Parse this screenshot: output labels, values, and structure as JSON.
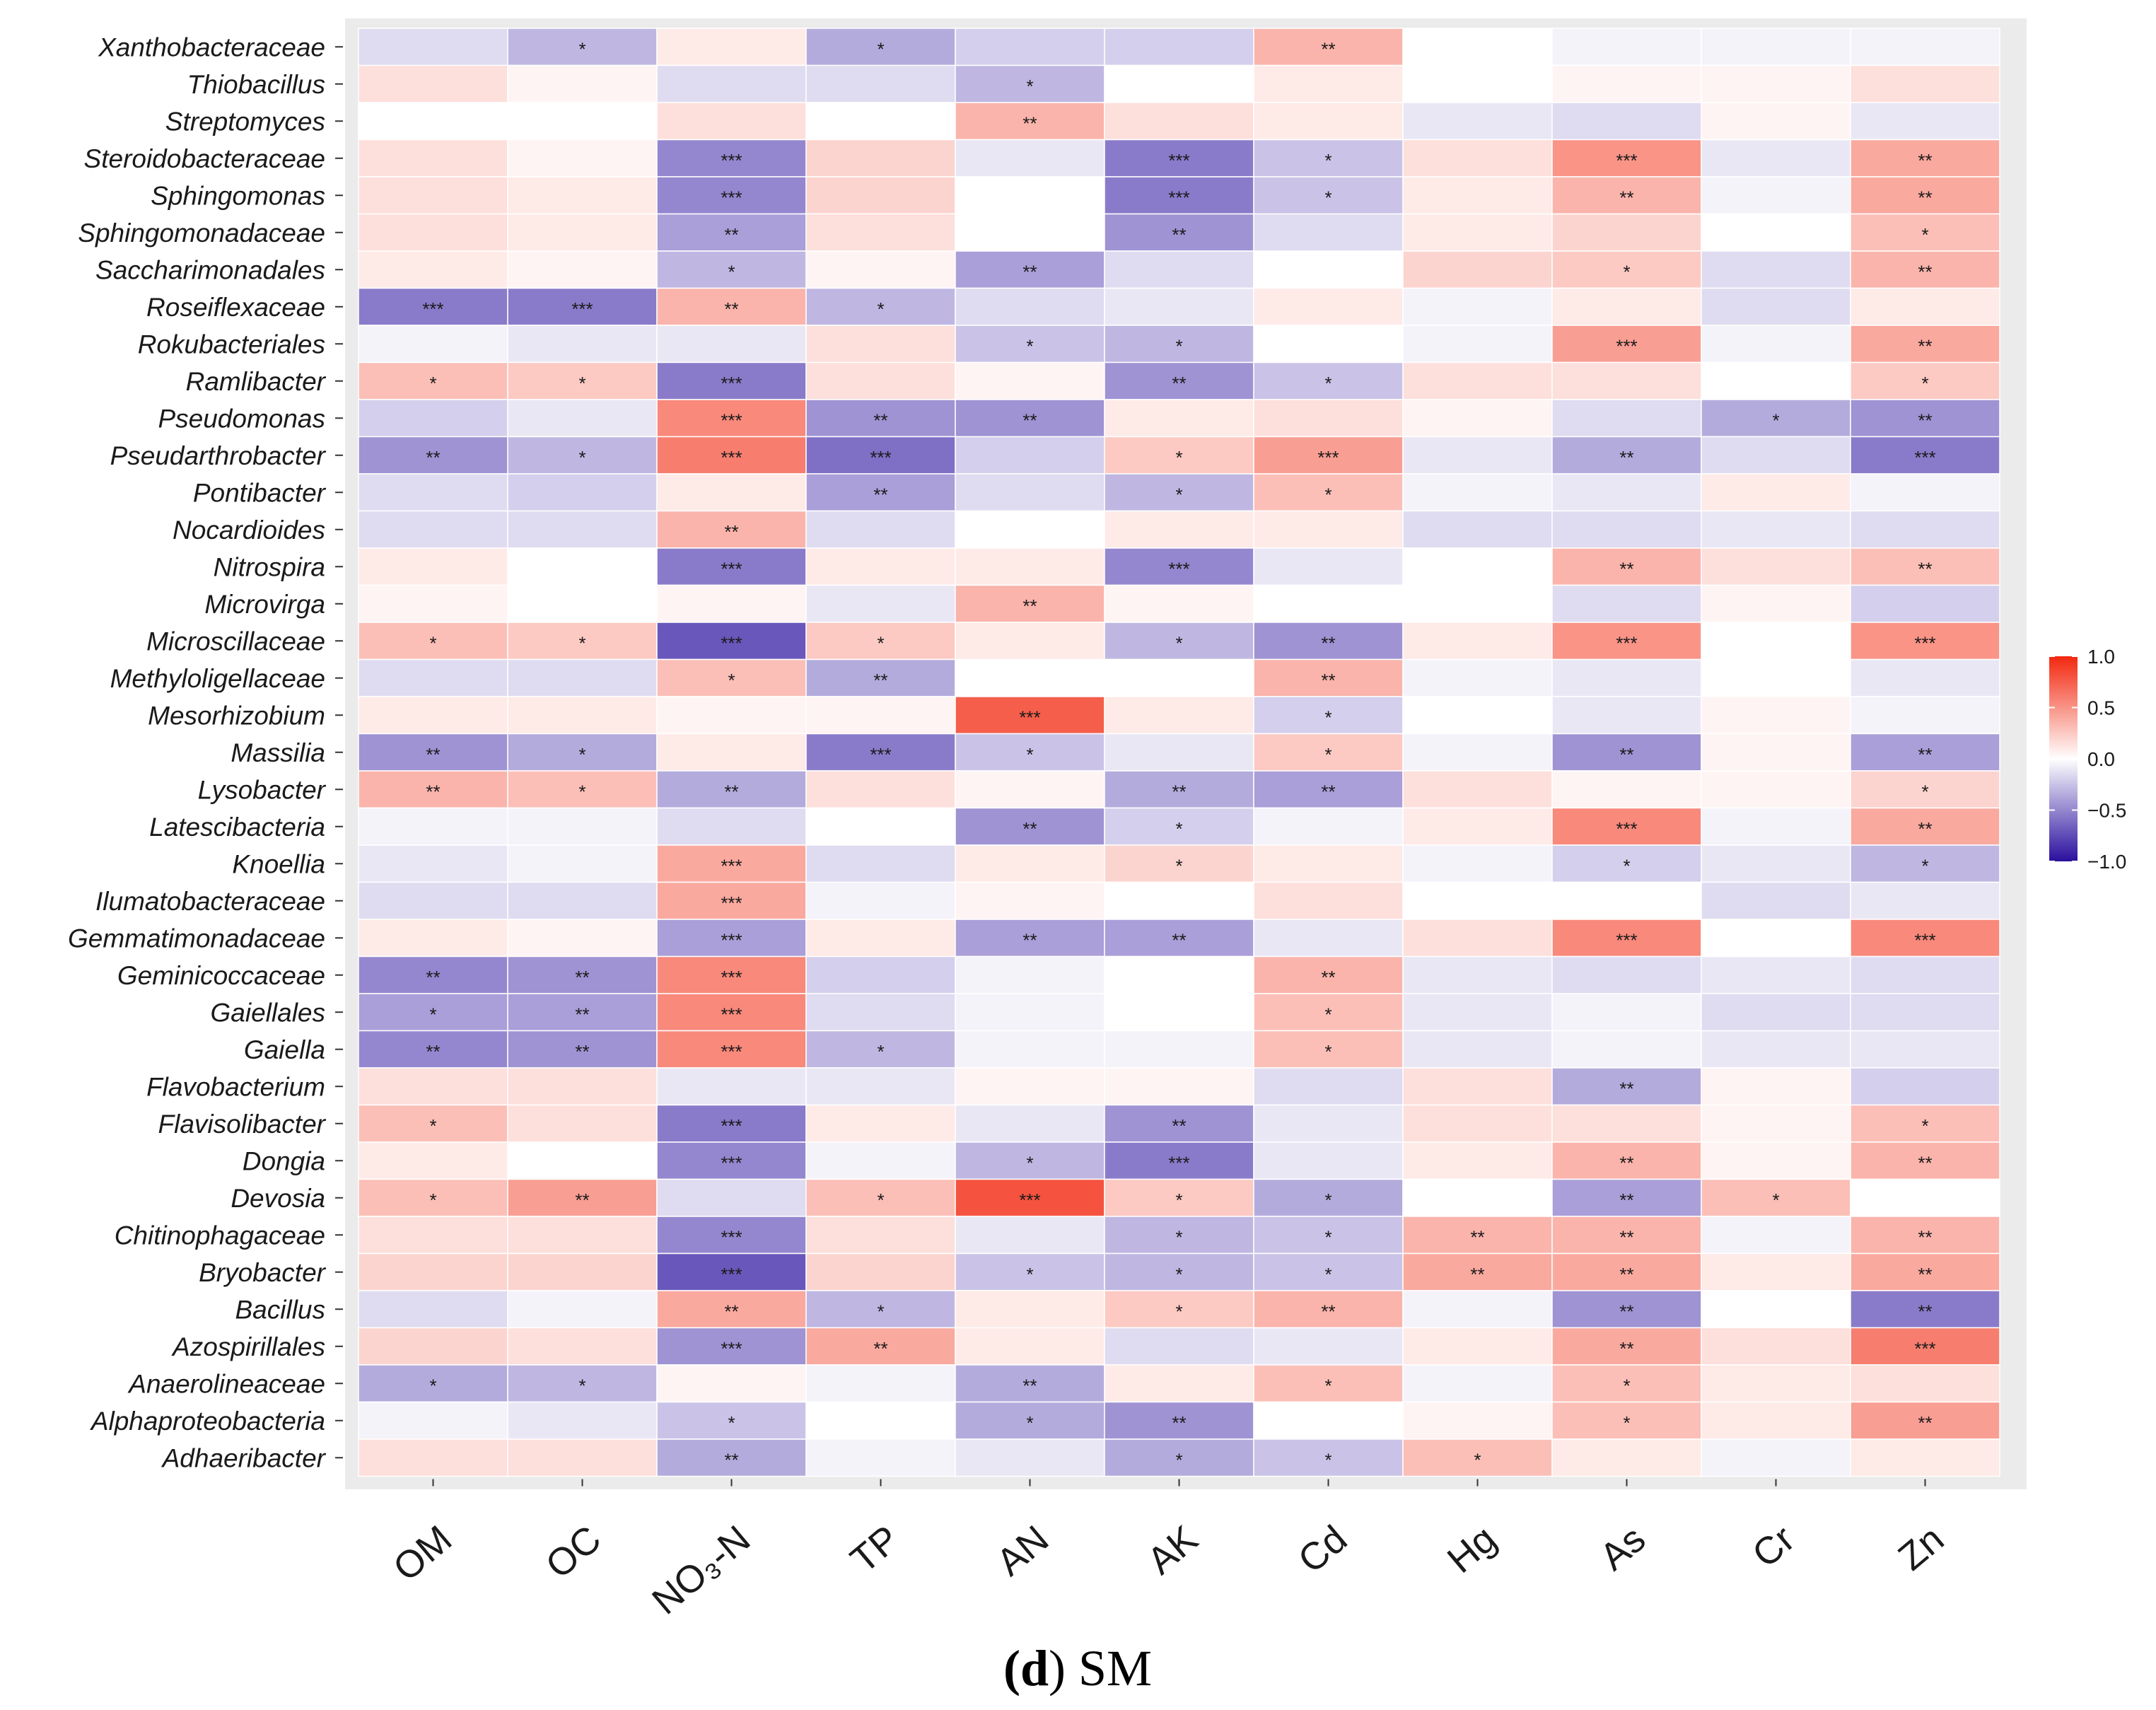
{
  "chart_data": {
    "type": "heatmap",
    "caption_letter": "d",
    "caption_text": " SM",
    "columns": [
      "OM",
      "OC",
      "NO₃-N",
      "TP",
      "AN",
      "AK",
      "Cd",
      "Hg",
      "As",
      "Cr",
      "Zn"
    ],
    "rows": [
      "Xanthobacteraceae",
      "Thiobacillus",
      "Streptomyces",
      "Steroidobacteraceae",
      "Sphingomonas",
      "Sphingomonadaceae",
      "Saccharimonadales",
      "Roseiflexaceae",
      "Rokubacteriales",
      "Ramlibacter",
      "Pseudomonas",
      "Pseudarthrobacter",
      "Pontibacter",
      "Nocardioides",
      "Nitrospira",
      "Microvirga",
      "Microscillaceae",
      "Methyloligellaceae",
      "Mesorhizobium",
      "Massilia",
      "Lysobacter",
      "Latescibacteria",
      "Knoellia",
      "Ilumatobacteraceae",
      "Gemmatimonadaceae",
      "Geminicoccaceae",
      "Gaiellales",
      "Gaiella",
      "Flavobacterium",
      "Flavisolibacter",
      "Dongia",
      "Devosia",
      "Chitinophagaceae",
      "Bryobacter",
      "Bacillus",
      "Azospirillales",
      "Anaerolineaceae",
      "Alphaproteobacteria",
      "Adhaeribacter"
    ],
    "values": [
      [
        -0.15,
        -0.3,
        0.1,
        -0.35,
        -0.2,
        -0.2,
        0.35,
        0.0,
        -0.05,
        -0.05,
        -0.05
      ],
      [
        0.15,
        0.05,
        -0.15,
        -0.15,
        -0.3,
        0.0,
        0.1,
        0.0,
        0.05,
        0.05,
        0.15
      ],
      [
        0.0,
        0.0,
        0.15,
        0.0,
        0.35,
        0.15,
        0.1,
        -0.1,
        -0.15,
        0.05,
        -0.1
      ],
      [
        0.15,
        0.05,
        -0.5,
        0.2,
        -0.1,
        -0.55,
        -0.25,
        0.15,
        0.5,
        -0.1,
        0.4
      ],
      [
        0.15,
        0.1,
        -0.5,
        0.2,
        0.0,
        -0.55,
        -0.25,
        0.1,
        0.35,
        -0.05,
        0.4
      ],
      [
        0.15,
        0.1,
        -0.4,
        0.15,
        0.0,
        -0.45,
        -0.15,
        0.1,
        0.2,
        0.0,
        0.3
      ],
      [
        0.1,
        0.05,
        -0.3,
        0.05,
        -0.4,
        -0.15,
        0.0,
        0.2,
        0.25,
        -0.15,
        0.35
      ],
      [
        -0.55,
        -0.55,
        0.35,
        -0.3,
        -0.15,
        -0.1,
        0.1,
        -0.05,
        0.1,
        -0.15,
        0.1
      ],
      [
        -0.05,
        -0.1,
        -0.1,
        0.15,
        -0.25,
        -0.3,
        0.0,
        -0.05,
        0.45,
        -0.05,
        0.4
      ],
      [
        0.3,
        0.25,
        -0.55,
        0.15,
        0.05,
        -0.45,
        -0.25,
        0.15,
        0.15,
        0.0,
        0.25
      ],
      [
        -0.2,
        -0.1,
        0.55,
        -0.45,
        -0.45,
        0.1,
        0.15,
        0.05,
        -0.15,
        -0.35,
        -0.45
      ],
      [
        -0.45,
        -0.3,
        0.6,
        -0.6,
        -0.2,
        0.25,
        0.45,
        -0.1,
        -0.35,
        -0.15,
        -0.55
      ],
      [
        -0.15,
        -0.2,
        0.1,
        -0.4,
        -0.15,
        -0.3,
        0.3,
        -0.05,
        -0.1,
        0.1,
        -0.05
      ],
      [
        -0.15,
        -0.15,
        0.35,
        -0.15,
        0.0,
        0.1,
        0.1,
        -0.15,
        -0.15,
        -0.1,
        -0.15
      ],
      [
        0.1,
        0.0,
        -0.55,
        0.1,
        0.1,
        -0.5,
        -0.1,
        0.0,
        0.35,
        0.15,
        0.3
      ],
      [
        0.05,
        0.0,
        0.05,
        -0.1,
        0.35,
        0.05,
        0.0,
        0.0,
        -0.15,
        0.05,
        -0.2
      ],
      [
        0.3,
        0.25,
        -0.7,
        0.25,
        0.1,
        -0.3,
        -0.45,
        0.1,
        0.5,
        0.0,
        0.5
      ],
      [
        -0.15,
        -0.15,
        0.3,
        -0.35,
        0.0,
        0.0,
        0.35,
        -0.05,
        -0.1,
        0.0,
        -0.1
      ],
      [
        0.1,
        0.1,
        0.05,
        0.05,
        0.75,
        0.1,
        -0.2,
        0.0,
        -0.1,
        0.05,
        -0.05
      ],
      [
        -0.45,
        -0.35,
        0.1,
        -0.55,
        -0.25,
        -0.1,
        0.25,
        -0.05,
        -0.45,
        0.05,
        -0.4
      ],
      [
        0.35,
        0.3,
        -0.35,
        0.15,
        0.05,
        -0.35,
        -0.4,
        0.15,
        0.05,
        0.05,
        0.2
      ],
      [
        -0.05,
        -0.05,
        -0.15,
        0.0,
        -0.45,
        -0.2,
        -0.05,
        0.1,
        0.55,
        -0.05,
        0.4
      ],
      [
        -0.1,
        -0.05,
        0.4,
        -0.15,
        0.1,
        0.2,
        0.1,
        -0.05,
        -0.2,
        -0.1,
        -0.3
      ],
      [
        -0.15,
        -0.15,
        0.4,
        -0.05,
        0.05,
        0.0,
        0.15,
        0.0,
        0.0,
        -0.15,
        -0.1
      ],
      [
        0.1,
        0.05,
        -0.4,
        0.1,
        -0.4,
        -0.4,
        -0.1,
        0.15,
        0.55,
        0.0,
        0.55
      ],
      [
        -0.5,
        -0.45,
        0.55,
        -0.2,
        -0.05,
        0.0,
        0.35,
        -0.1,
        -0.15,
        -0.1,
        -0.15
      ],
      [
        -0.4,
        -0.4,
        0.55,
        -0.15,
        -0.05,
        0.0,
        0.3,
        -0.1,
        -0.05,
        -0.15,
        -0.15
      ],
      [
        -0.5,
        -0.45,
        0.55,
        -0.3,
        -0.05,
        -0.05,
        0.3,
        -0.1,
        -0.05,
        -0.1,
        -0.1
      ],
      [
        0.15,
        0.15,
        -0.1,
        -0.1,
        0.05,
        0.05,
        -0.15,
        0.15,
        -0.35,
        0.05,
        -0.2
      ],
      [
        0.3,
        0.15,
        -0.55,
        0.1,
        -0.1,
        -0.45,
        -0.1,
        0.15,
        0.15,
        0.05,
        0.3
      ],
      [
        0.1,
        0.0,
        -0.5,
        -0.05,
        -0.3,
        -0.55,
        -0.1,
        0.1,
        0.35,
        0.05,
        0.35
      ],
      [
        0.3,
        0.45,
        -0.15,
        0.3,
        0.8,
        0.25,
        -0.35,
        0.0,
        -0.4,
        0.3,
        0.0
      ],
      [
        0.15,
        0.15,
        -0.5,
        0.15,
        -0.1,
        -0.3,
        -0.25,
        0.35,
        0.35,
        -0.05,
        0.35
      ],
      [
        0.2,
        0.2,
        -0.7,
        0.2,
        -0.25,
        -0.3,
        -0.25,
        0.4,
        0.4,
        0.1,
        0.4
      ],
      [
        -0.15,
        -0.05,
        0.4,
        -0.3,
        0.1,
        0.25,
        0.35,
        -0.05,
        -0.45,
        0.0,
        -0.55
      ],
      [
        0.2,
        0.15,
        -0.45,
        0.4,
        0.1,
        -0.15,
        -0.1,
        0.1,
        0.4,
        0.15,
        0.6
      ],
      [
        -0.35,
        -0.3,
        0.05,
        -0.05,
        -0.35,
        0.1,
        0.3,
        -0.05,
        0.3,
        0.1,
        0.15
      ],
      [
        -0.05,
        -0.1,
        -0.25,
        0.0,
        -0.35,
        -0.45,
        0.0,
        0.05,
        0.3,
        0.1,
        0.45
      ],
      [
        0.15,
        0.15,
        -0.35,
        -0.05,
        -0.1,
        -0.35,
        -0.25,
        0.3,
        0.1,
        -0.05,
        0.1
      ]
    ],
    "significance": [
      [
        "",
        "*",
        "",
        "*",
        "",
        "",
        "**",
        "",
        "",
        "",
        ""
      ],
      [
        "",
        "",
        "",
        "",
        "*",
        "",
        "",
        "",
        "",
        "",
        ""
      ],
      [
        "",
        "",
        "",
        "",
        "**",
        "",
        "",
        "",
        "",
        "",
        ""
      ],
      [
        "",
        "",
        "***",
        "",
        "",
        "***",
        "*",
        "",
        "***",
        "",
        "**"
      ],
      [
        "",
        "",
        "***",
        "",
        "",
        "***",
        "*",
        "",
        "**",
        "",
        "**"
      ],
      [
        "",
        "",
        "**",
        "",
        "",
        "**",
        "",
        "",
        "",
        "",
        "*"
      ],
      [
        "",
        "",
        "*",
        "",
        "**",
        "",
        "",
        "",
        "*",
        "",
        "**"
      ],
      [
        "***",
        "***",
        "**",
        "*",
        "",
        "",
        "",
        "",
        "",
        "",
        ""
      ],
      [
        "",
        "",
        "",
        "",
        "*",
        "*",
        "",
        "",
        "***",
        "",
        "**"
      ],
      [
        "*",
        "*",
        "***",
        "",
        "",
        "**",
        "*",
        "",
        "",
        "",
        "*"
      ],
      [
        "",
        "",
        "***",
        "**",
        "**",
        "",
        "",
        "",
        "",
        "*",
        "**"
      ],
      [
        "**",
        "*",
        "***",
        "***",
        "",
        "*",
        "***",
        "",
        "**",
        "",
        "***"
      ],
      [
        "",
        "",
        "",
        "**",
        "",
        "*",
        "*",
        "",
        "",
        "",
        ""
      ],
      [
        "",
        "",
        "**",
        "",
        "",
        "",
        "",
        "",
        "",
        "",
        ""
      ],
      [
        "",
        "",
        "***",
        "",
        "",
        "***",
        "",
        "",
        "**",
        "",
        "**"
      ],
      [
        "",
        "",
        "",
        "",
        "**",
        "",
        "",
        "",
        "",
        "",
        ""
      ],
      [
        "*",
        "*",
        "***",
        "*",
        "",
        "*",
        "**",
        "",
        "***",
        "",
        "***"
      ],
      [
        "",
        "",
        "*",
        "**",
        "",
        "",
        "**",
        "",
        "",
        "",
        ""
      ],
      [
        "",
        "",
        "",
        "",
        "***",
        "",
        "*",
        "",
        "",
        "",
        ""
      ],
      [
        "**",
        "*",
        "",
        "***",
        "*",
        "",
        "*",
        "",
        "**",
        "",
        "**"
      ],
      [
        "**",
        "*",
        "**",
        "",
        "",
        "**",
        "**",
        "",
        "",
        "",
        "*"
      ],
      [
        "",
        "",
        "",
        "",
        "**",
        "*",
        "",
        "",
        "***",
        "",
        "**"
      ],
      [
        "",
        "",
        "***",
        "",
        "",
        "*",
        "",
        "",
        "*",
        "",
        "*"
      ],
      [
        "",
        "",
        "***",
        "",
        "",
        "",
        "",
        "",
        "",
        "",
        ""
      ],
      [
        "",
        "",
        "***",
        "",
        "**",
        "**",
        "",
        "",
        "***",
        "",
        "***"
      ],
      [
        "**",
        "**",
        "***",
        "",
        "",
        "",
        "**",
        "",
        "",
        "",
        ""
      ],
      [
        "*",
        "**",
        "***",
        "",
        "",
        "",
        "*",
        "",
        "",
        "",
        ""
      ],
      [
        "**",
        "**",
        "***",
        "*",
        "",
        "",
        "*",
        "",
        "",
        "",
        ""
      ],
      [
        "",
        "",
        "",
        "",
        "",
        "",
        "",
        "",
        "**",
        "",
        ""
      ],
      [
        "*",
        "",
        "***",
        "",
        "",
        "**",
        "",
        "",
        "",
        "",
        "*"
      ],
      [
        "",
        "",
        "***",
        "",
        "*",
        "***",
        "",
        "",
        "**",
        "",
        "**"
      ],
      [
        "*",
        "**",
        "",
        "*",
        "***",
        "*",
        "*",
        "",
        "**",
        "*",
        ""
      ],
      [
        "",
        "",
        "***",
        "",
        "",
        "*",
        "*",
        "**",
        "**",
        "",
        "**"
      ],
      [
        "",
        "",
        "***",
        "",
        "*",
        "*",
        "*",
        "**",
        "**",
        "",
        "**"
      ],
      [
        "",
        "",
        "**",
        "*",
        "",
        "*",
        "**",
        "",
        "**",
        "",
        "**"
      ],
      [
        "",
        "",
        "***",
        "**",
        "",
        "",
        "",
        "",
        "**",
        "",
        "***"
      ],
      [
        "*",
        "*",
        "",
        "",
        "**",
        "",
        "*",
        "",
        "*",
        "",
        ""
      ],
      [
        "",
        "",
        "*",
        "",
        "*",
        "**",
        "",
        "",
        "*",
        "",
        "**"
      ],
      [
        "",
        "",
        "**",
        "",
        "",
        "*",
        "*",
        "*",
        "",
        "",
        ""
      ]
    ],
    "legend": {
      "ticks": [
        1.0,
        0.5,
        0.0,
        -0.5,
        -1.0
      ],
      "tick_labels": [
        "1.0",
        "0.5",
        "0.0",
        "−0.5",
        "−1.0"
      ],
      "range": [
        -1.0,
        1.0
      ]
    },
    "colors": {
      "high": "#f2280f",
      "mid": "#ffffff",
      "low": "#2a0f9e",
      "panel_bg": "#ebebeb"
    }
  }
}
